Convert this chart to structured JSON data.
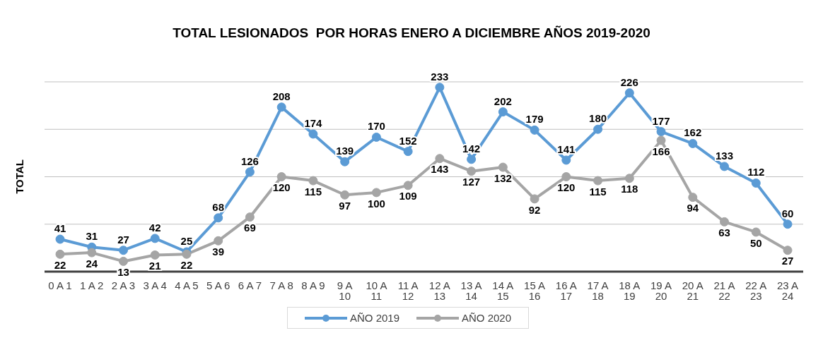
{
  "chart_data": {
    "type": "line",
    "title": "TOTAL LESIONADOS  POR HORAS ENERO A DICIEMBRE AÑOS 2019-2020",
    "ylabel": "TOTAL",
    "categories": [
      "0 A 1",
      "1 A 2",
      "2 A 3",
      "3 A 4",
      "4 A 5",
      "5 A 6",
      "6 A 7",
      "7 A 8",
      "8 A 9",
      "9 A 10",
      "10 A 11",
      "11 A 12",
      "12 A 13",
      "13 A 14",
      "14 A 15",
      "15 A 16",
      "16 A 17",
      "17 A 18",
      "18 A 19",
      "19 A 20",
      "20 A 21",
      "21 A 22",
      "22 A 23",
      "23 A 24"
    ],
    "series": [
      {
        "name": "AÑO 2019",
        "color": "#5b9bd5",
        "values": [
          41,
          31,
          27,
          42,
          25,
          68,
          126,
          208,
          174,
          139,
          170,
          152,
          233,
          142,
          202,
          179,
          141,
          180,
          226,
          177,
          162,
          133,
          112,
          60
        ]
      },
      {
        "name": "AÑO 2020",
        "color": "#a5a5a5",
        "values": [
          22,
          24,
          13,
          21,
          22,
          39,
          69,
          120,
          115,
          97,
          100,
          109,
          143,
          127,
          132,
          92,
          120,
          115,
          118,
          166,
          94,
          63,
          50,
          27
        ]
      }
    ],
    "tick_labels": "x",
    "grid": "y",
    "legend": "bottom",
    "marker": "circle",
    "data_labels": true
  }
}
